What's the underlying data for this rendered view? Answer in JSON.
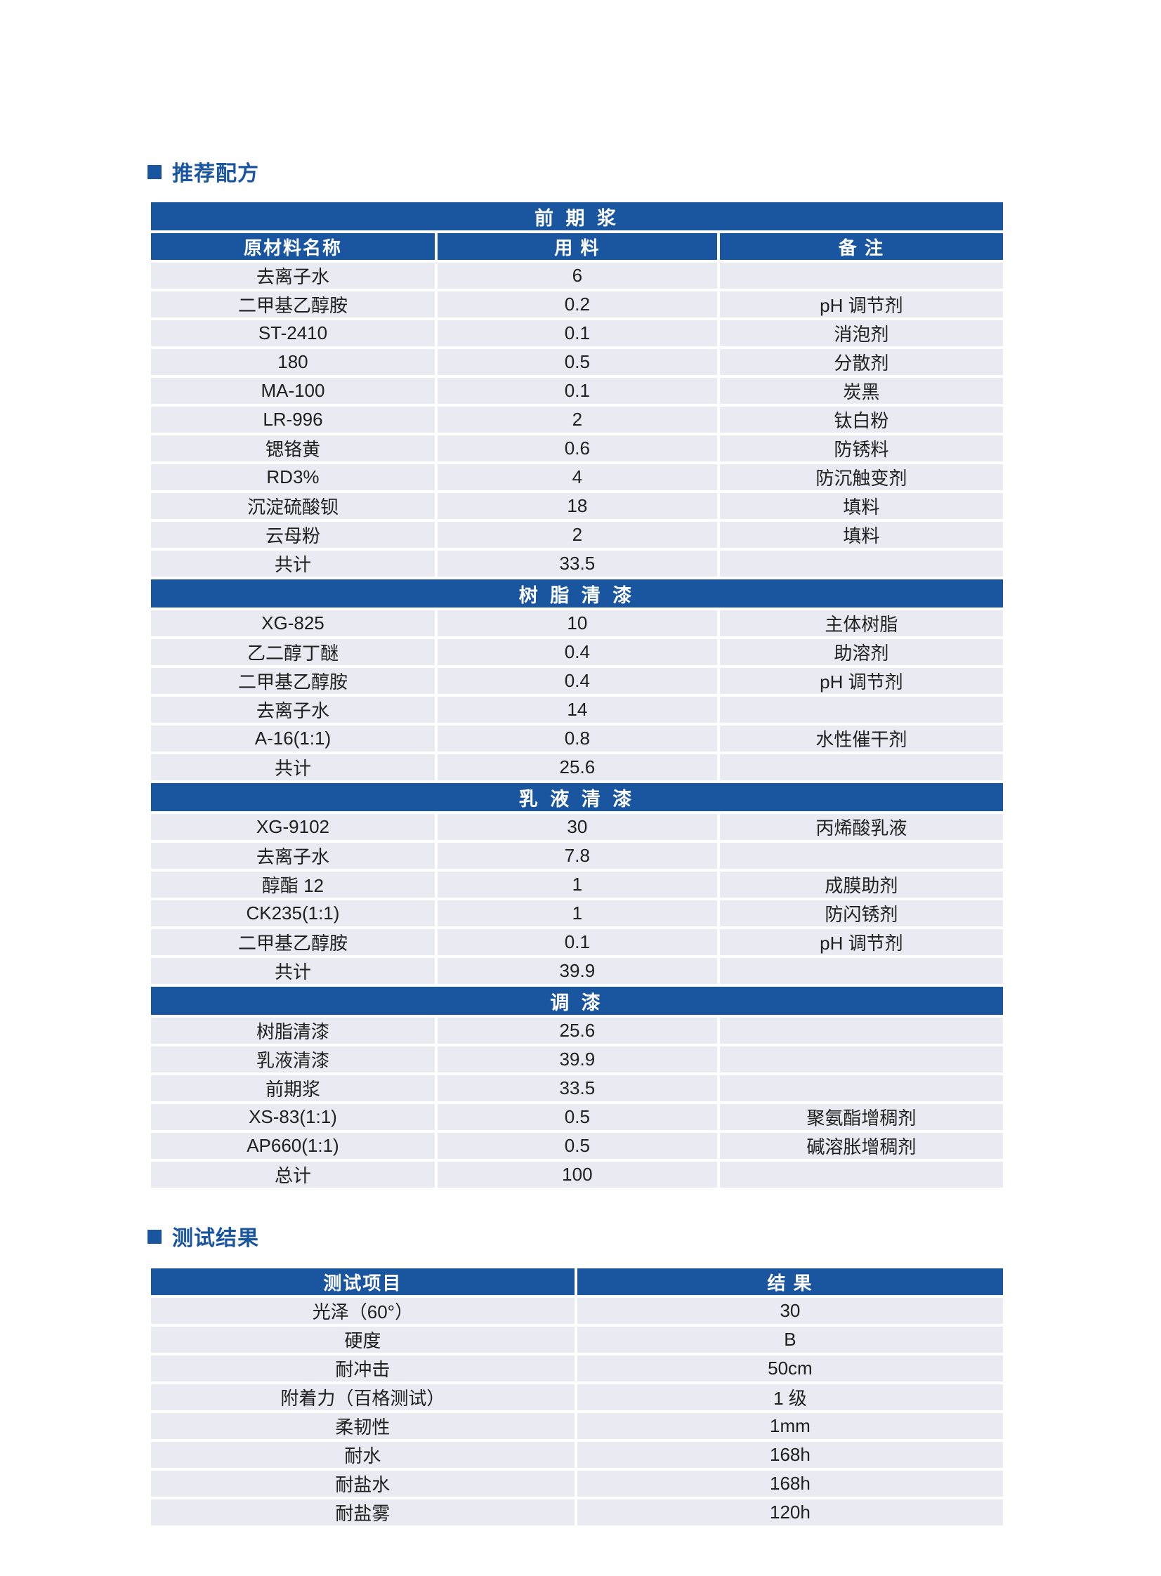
{
  "colors": {
    "accent_blue": "#1A55A0",
    "row_bg": "#E9EAF2",
    "text_dark": "#1F1F1F",
    "page_bg": "#FFFFFF",
    "header_text": "#FFFFFF"
  },
  "formula_section": {
    "title": "推荐配方",
    "bullet_icon": "square-bullet"
  },
  "results_section": {
    "title": "测试结果",
    "bullet_icon": "square-bullet"
  },
  "formula_table": {
    "columns": [
      "原材料名称",
      "用  料",
      "备  注"
    ],
    "sections": [
      {
        "name": "前 期 浆",
        "rows": [
          [
            "去离子水",
            "6",
            ""
          ],
          [
            "二甲基乙醇胺",
            "0.2",
            "pH 调节剂"
          ],
          [
            "ST-2410",
            "0.1",
            "消泡剂"
          ],
          [
            "180",
            "0.5",
            "分散剂"
          ],
          [
            "MA-100",
            "0.1",
            "炭黑"
          ],
          [
            "LR-996",
            "2",
            "钛白粉"
          ],
          [
            "锶铬黄",
            "0.6",
            "防锈料"
          ],
          [
            "RD3%",
            "4",
            "防沉触变剂"
          ],
          [
            "沉淀硫酸钡",
            "18",
            "填料"
          ],
          [
            "云母粉",
            "2",
            "填料"
          ],
          [
            "共计",
            "33.5",
            ""
          ]
        ]
      },
      {
        "name": "树 脂 清 漆",
        "rows": [
          [
            "XG-825",
            "10",
            "主体树脂"
          ],
          [
            "乙二醇丁醚",
            "0.4",
            "助溶剂"
          ],
          [
            "二甲基乙醇胺",
            "0.4",
            "pH 调节剂"
          ],
          [
            "去离子水",
            "14",
            ""
          ],
          [
            "A-16(1:1)",
            "0.8",
            "水性催干剂"
          ],
          [
            "共计",
            "25.6",
            ""
          ]
        ]
      },
      {
        "name": "乳 液 清 漆",
        "rows": [
          [
            "XG-9102",
            "30",
            "丙烯酸乳液"
          ],
          [
            "去离子水",
            "7.8",
            ""
          ],
          [
            "醇酯 12",
            "1",
            "成膜助剂"
          ],
          [
            "CK235(1:1)",
            "1",
            "防闪锈剂"
          ],
          [
            "二甲基乙醇胺",
            "0.1",
            "pH 调节剂"
          ],
          [
            "共计",
            "39.9",
            ""
          ]
        ]
      },
      {
        "name": "调  漆",
        "rows": [
          [
            "树脂清漆",
            "25.6",
            ""
          ],
          [
            "乳液清漆",
            "39.9",
            ""
          ],
          [
            "前期浆",
            "33.5",
            ""
          ],
          [
            "XS-83(1:1)",
            "0.5",
            "聚氨酯增稠剂"
          ],
          [
            "AP660(1:1)",
            "0.5",
            "碱溶胀增稠剂"
          ],
          [
            "总计",
            "100",
            ""
          ]
        ]
      }
    ]
  },
  "results_table": {
    "columns": [
      "测试项目",
      "结  果"
    ],
    "rows": [
      [
        "光泽（60°）",
        "30"
      ],
      [
        "硬度",
        "B"
      ],
      [
        "耐冲击",
        "50cm"
      ],
      [
        "附着力（百格测试）",
        "1 级"
      ],
      [
        "柔韧性",
        "1mm"
      ],
      [
        "耐水",
        "168h"
      ],
      [
        "耐盐水",
        "168h"
      ],
      [
        "耐盐雾",
        "120h"
      ]
    ]
  }
}
